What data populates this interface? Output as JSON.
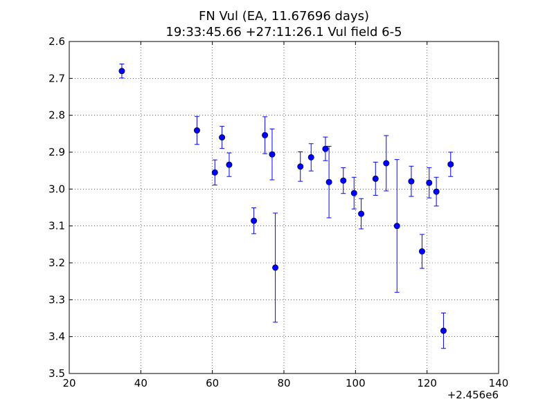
{
  "chart_data": {
    "type": "scatter",
    "title_line1": "FN Vul (EA, 11.67696 days)",
    "title_line2": "19:33:45.66 +27:11:26.1 Vul field 6-5",
    "xlabel": "",
    "ylabel": "",
    "x_offset_label": "+2.456e6",
    "xlim": [
      20,
      140
    ],
    "ylim": [
      2.6,
      3.5
    ],
    "y_inverted": true,
    "grid": true,
    "x_ticks": [
      20,
      40,
      60,
      80,
      100,
      120,
      140
    ],
    "x_tick_labels": [
      "20",
      "40",
      "60",
      "80",
      "100",
      "120",
      "140"
    ],
    "y_ticks": [
      2.6,
      2.7,
      2.8,
      2.9,
      3.0,
      3.1,
      3.2,
      3.3,
      3.4,
      3.5
    ],
    "y_tick_labels": [
      "2.6",
      "2.7",
      "2.8",
      "2.9",
      "3.0",
      "3.1",
      "3.2",
      "3.3",
      "3.4",
      "3.5"
    ],
    "marker_color": "#0000ff",
    "points": [
      {
        "x": 34.7,
        "y": 2.68,
        "err": 0.019
      },
      {
        "x": 55.7,
        "y": 2.841,
        "err": 0.038
      },
      {
        "x": 60.7,
        "y": 2.955,
        "err": 0.034
      },
      {
        "x": 62.7,
        "y": 2.86,
        "err": 0.03
      },
      {
        "x": 64.7,
        "y": 2.934,
        "err": 0.032
      },
      {
        "x": 71.6,
        "y": 3.086,
        "err": 0.035
      },
      {
        "x": 74.7,
        "y": 2.854,
        "err": 0.05
      },
      {
        "x": 76.7,
        "y": 2.906,
        "err": 0.069
      },
      {
        "x": 77.6,
        "y": 3.213,
        "err": 0.148
      },
      {
        "x": 84.6,
        "y": 2.939,
        "err": 0.04
      },
      {
        "x": 87.6,
        "y": 2.914,
        "err": 0.037
      },
      {
        "x": 91.6,
        "y": 2.891,
        "err": 0.032
      },
      {
        "x": 92.6,
        "y": 2.981,
        "err": 0.097
      },
      {
        "x": 96.6,
        "y": 2.977,
        "err": 0.035
      },
      {
        "x": 99.6,
        "y": 3.011,
        "err": 0.043
      },
      {
        "x": 101.6,
        "y": 3.067,
        "err": 0.041
      },
      {
        "x": 105.6,
        "y": 2.972,
        "err": 0.045
      },
      {
        "x": 108.6,
        "y": 2.93,
        "err": 0.075
      },
      {
        "x": 111.6,
        "y": 3.1,
        "err": 0.18
      },
      {
        "x": 115.6,
        "y": 2.979,
        "err": 0.041
      },
      {
        "x": 118.6,
        "y": 3.169,
        "err": 0.046
      },
      {
        "x": 120.6,
        "y": 2.983,
        "err": 0.041
      },
      {
        "x": 122.6,
        "y": 3.007,
        "err": 0.039
      },
      {
        "x": 124.6,
        "y": 3.384,
        "err": 0.048
      },
      {
        "x": 126.6,
        "y": 2.933,
        "err": 0.033
      }
    ]
  }
}
